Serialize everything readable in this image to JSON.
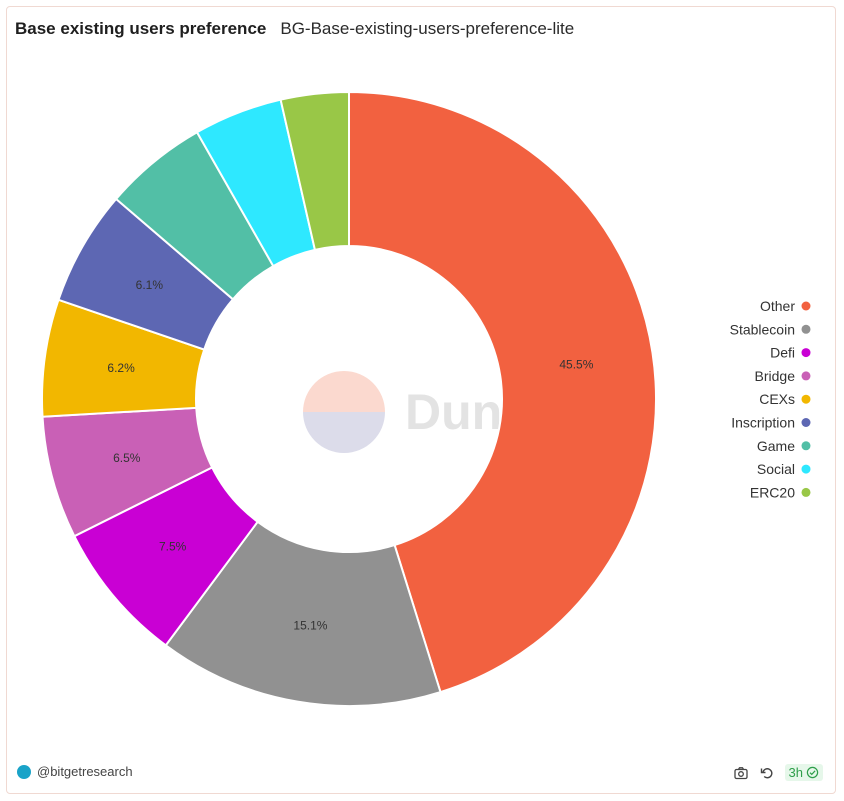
{
  "header": {
    "title": "Base existing users preference",
    "query_name": "BG-Base-existing-users-preference-lite"
  },
  "footer": {
    "author": "@bitgetresearch",
    "refresh_label": "3h"
  },
  "watermark": "Dune",
  "chart_data": {
    "type": "pie",
    "donut": true,
    "title": "Base existing users preference",
    "legend_position": "right",
    "slices": [
      {
        "label": "Other",
        "value": 45.5,
        "color": "#f26140",
        "show_label": true
      },
      {
        "label": "Stablecoin",
        "value": 15.1,
        "color": "#919191",
        "show_label": true
      },
      {
        "label": "Defi",
        "value": 7.5,
        "color": "#c900d4",
        "show_label": true
      },
      {
        "label": "Bridge",
        "value": 6.5,
        "color": "#c960b6",
        "show_label": true
      },
      {
        "label": "CEXs",
        "value": 6.2,
        "color": "#f2b700",
        "show_label": true
      },
      {
        "label": "Inscription",
        "value": 6.1,
        "color": "#5d67b3",
        "show_label": true
      },
      {
        "label": "Game",
        "value": 5.5,
        "color": "#52bfa6",
        "show_label": false
      },
      {
        "label": "Social",
        "value": 4.7,
        "color": "#2ee8ff",
        "show_label": false
      },
      {
        "label": "ERC20",
        "value": 3.6,
        "color": "#99c747",
        "show_label": false
      }
    ]
  }
}
